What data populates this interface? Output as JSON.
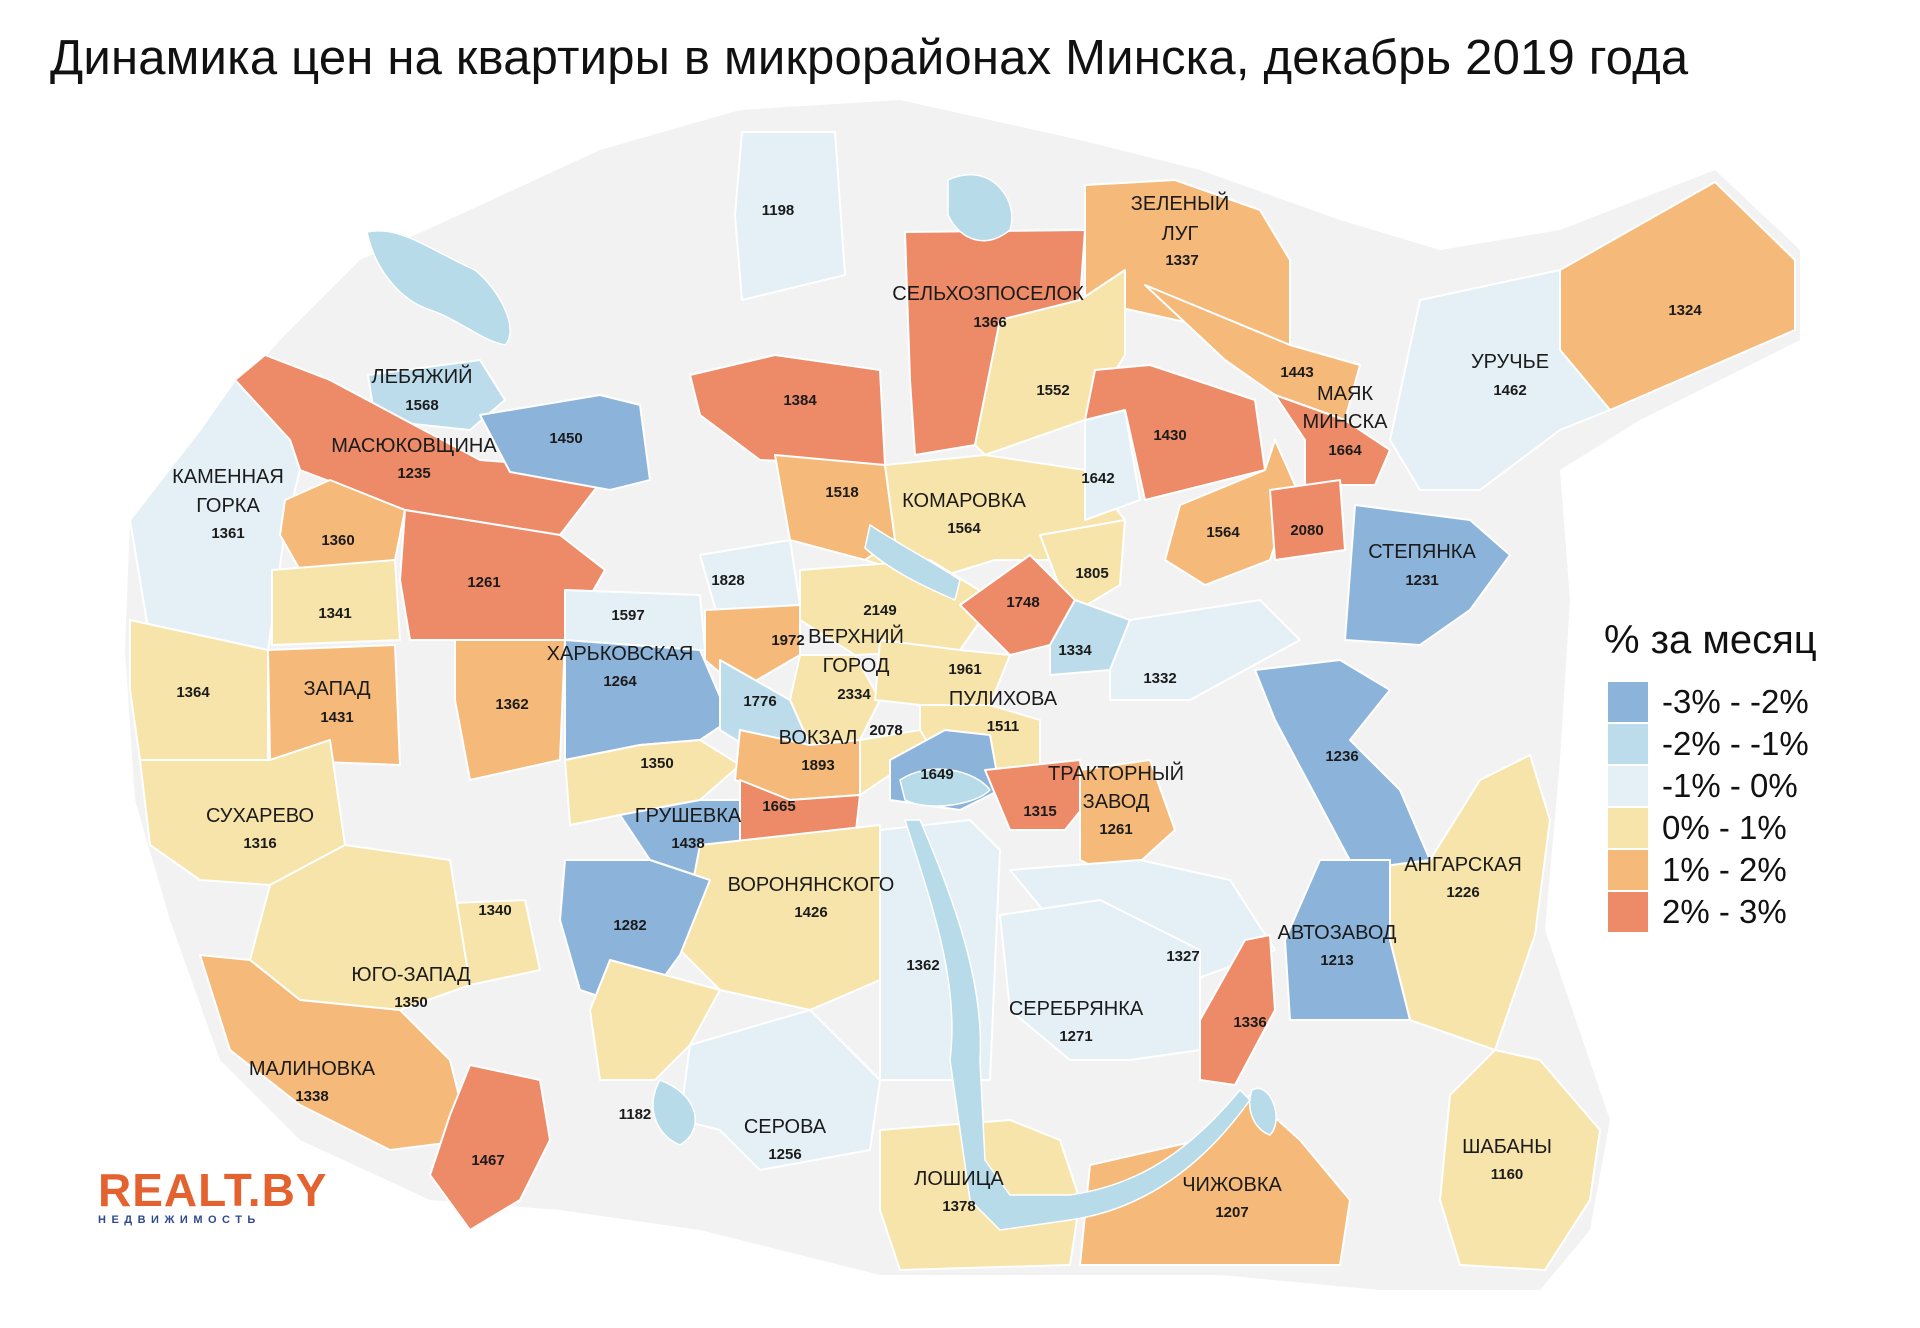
{
  "title": "Динамика цен на квартиры в микрорайонах Минска, декабрь 2019 года",
  "colors": {
    "c1": "#8cb4da",
    "c2": "#bcdceb",
    "c3": "#e4f0f5",
    "c4": "#f7e4aa",
    "c5": "#f5b97a",
    "c6": "#ed8a67",
    "base": "#f2f2f2",
    "water": "#b7dbe9"
  },
  "legend": {
    "title": "% за месяц",
    "items": [
      {
        "label": "-3% - -2%",
        "color": "#8cb4da"
      },
      {
        "label": "-2% - -1%",
        "color": "#bcdceb"
      },
      {
        "label": "-1% - 0%",
        "color": "#e4f0f5"
      },
      {
        "label": "0% - 1%",
        "color": "#f7e4aa"
      },
      {
        "label": "1% - 2%",
        "color": "#f5b97a"
      },
      {
        "label": "2% - 3%",
        "color": "#ed8a67"
      }
    ]
  },
  "logo": {
    "main": "REALT.BY",
    "sub": "НЕДВИЖИМОСТЬ"
  },
  "regions": [
    {
      "name": "",
      "value": "1198",
      "cls": 3
    },
    {
      "name": "СЕЛЬХОЗПОСЕЛОК",
      "value": "1366",
      "cls": 6
    },
    {
      "name": "ЗЕЛЕНЫЙ ЛУГ",
      "value": "1337",
      "cls": 5
    },
    {
      "name": "",
      "value": "1324",
      "cls": 5
    },
    {
      "name": "ЛЕБЯЖИЙ",
      "value": "1568",
      "cls": 2
    },
    {
      "name": "МАСЮКОВЩИНА",
      "value": "1235",
      "cls": 6
    },
    {
      "name": "",
      "value": "1450",
      "cls": 1
    },
    {
      "name": "",
      "value": "1384",
      "cls": 6
    },
    {
      "name": "",
      "value": "1552",
      "cls": 4
    },
    {
      "name": "",
      "value": "1443",
      "cls": 5
    },
    {
      "name": "МАЯК МИНСКА",
      "value": "1664",
      "cls": 6
    },
    {
      "name": "УРУЧЬЕ",
      "value": "1462",
      "cls": 3
    },
    {
      "name": "КАМЕННАЯ ГОРКА",
      "value": "1361",
      "cls": 3
    },
    {
      "name": "",
      "value": "1360",
      "cls": 5
    },
    {
      "name": "",
      "value": "1261",
      "cls": 6
    },
    {
      "name": "",
      "value": "1518",
      "cls": 5
    },
    {
      "name": "КОМАРОВКА",
      "value": "1564",
      "cls": 4
    },
    {
      "name": "",
      "value": "1642",
      "cls": 3
    },
    {
      "name": "",
      "value": "1430",
      "cls": 6
    },
    {
      "name": "",
      "value": "1564",
      "cls": 5
    },
    {
      "name": "",
      "value": "2080",
      "cls": 6
    },
    {
      "name": "СТЕПЯНКА",
      "value": "1231",
      "cls": 1
    },
    {
      "name": "",
      "value": "1341",
      "cls": 4
    },
    {
      "name": "",
      "value": "1828",
      "cls": 3
    },
    {
      "name": "",
      "value": "2149",
      "cls": 4
    },
    {
      "name": "",
      "value": "1805",
      "cls": 4
    },
    {
      "name": "",
      "value": "1748",
      "cls": 6
    },
    {
      "name": "",
      "value": "1597",
      "cls": 3
    },
    {
      "name": "",
      "value": "1972",
      "cls": 5
    },
    {
      "name": "ВЕРХНИЙ ГОРОД",
      "value": "2334",
      "cls": 4
    },
    {
      "name": "",
      "value": "1334",
      "cls": 2
    },
    {
      "name": "",
      "value": "1364",
      "cls": 4
    },
    {
      "name": "ЗАПАД",
      "value": "1431",
      "cls": 5
    },
    {
      "name": "",
      "value": "1362",
      "cls": 5
    },
    {
      "name": "ХАРЬКОВСКАЯ",
      "value": "1264",
      "cls": 1
    },
    {
      "name": "",
      "value": "1776",
      "cls": 2
    },
    {
      "name": "",
      "value": "1961",
      "cls": 4
    },
    {
      "name": "ПУЛИХОВА",
      "value": "1511",
      "cls": 4
    },
    {
      "name": "",
      "value": "1332",
      "cls": 3
    },
    {
      "name": "",
      "value": "1350",
      "cls": 4
    },
    {
      "name": "ВОКЗАЛ",
      "value": "1893",
      "cls": 5
    },
    {
      "name": "",
      "value": "2078",
      "cls": 4
    },
    {
      "name": "",
      "value": "1649",
      "cls": 1
    },
    {
      "name": "",
      "value": "1236",
      "cls": 1
    },
    {
      "name": "СУХАРЕВО",
      "value": "1316",
      "cls": 4
    },
    {
      "name": "ГРУШЕВКА",
      "value": "1438",
      "cls": 1
    },
    {
      "name": "",
      "value": "1665",
      "cls": 6
    },
    {
      "name": "",
      "value": "1315",
      "cls": 6
    },
    {
      "name": "ТРАКТОРНЫЙ ЗАВОД",
      "value": "1261",
      "cls": 5
    },
    {
      "name": "АНГАРСКАЯ",
      "value": "1226",
      "cls": 4
    },
    {
      "name": "",
      "value": "1340",
      "cls": 4
    },
    {
      "name": "ВОРОНЯНСКОГО",
      "value": "1426",
      "cls": 4
    },
    {
      "name": "",
      "value": "1282",
      "cls": 1
    },
    {
      "name": "",
      "value": "1362",
      "cls": 3
    },
    {
      "name": "",
      "value": "1327",
      "cls": 3
    },
    {
      "name": "АВТОЗАВОД",
      "value": "1213",
      "cls": 1
    },
    {
      "name": "ЮГО-ЗАПАД",
      "value": "1350",
      "cls": 4
    },
    {
      "name": "СЕРЕБРЯНКА",
      "value": "1271",
      "cls": 3
    },
    {
      "name": "",
      "value": "1336",
      "cls": 6
    },
    {
      "name": "МАЛИНОВКА",
      "value": "1338",
      "cls": 5
    },
    {
      "name": "",
      "value": "1182",
      "cls": 4
    },
    {
      "name": "СЕРОВА",
      "value": "1256",
      "cls": 3
    },
    {
      "name": "",
      "value": "1467",
      "cls": 6
    },
    {
      "name": "ЛОШИЦА",
      "value": "1378",
      "cls": 4
    },
    {
      "name": "ЧИЖОВКА",
      "value": "1207",
      "cls": 5
    },
    {
      "name": "ШАБАНЫ",
      "value": "1160",
      "cls": 4
    }
  ]
}
